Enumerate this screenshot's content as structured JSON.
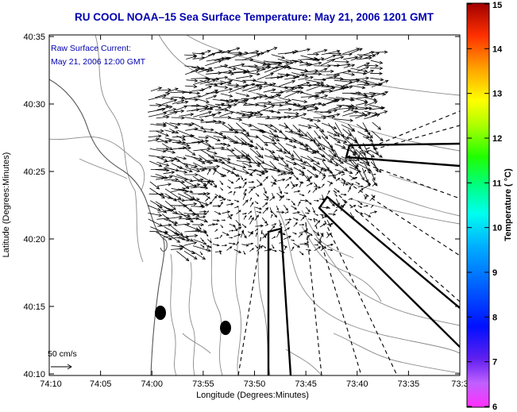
{
  "title": "RU COOL  NOAA–15  Sea Surface Temperature:  May 21, 2006 1201 GMT",
  "annotation": {
    "line1": "Raw Surface Current:",
    "line2": "May 21, 2006 12:00 GMT"
  },
  "axes": {
    "xlabel": "Longitude (Degrees:Minutes)",
    "ylabel": "Latitude (Degrees:Minutes)",
    "x_ticks": [
      "74:10",
      "74:05",
      "74:00",
      "73:55",
      "73:50",
      "73:45",
      "73:40",
      "73:35",
      "73:3"
    ],
    "y_ticks": [
      "40:35",
      "40:30",
      "40:25",
      "40:20",
      "40:15",
      "40:10"
    ]
  },
  "scale": {
    "label": "50 cm/s"
  },
  "colorbar": {
    "label": "Temperature ( °C)",
    "ticks": [
      "15",
      "14",
      "13",
      "12",
      "11",
      "10",
      "9",
      "8",
      "7",
      "6"
    ],
    "min": 6,
    "max": 15
  },
  "colors": {
    "title": "#0000b0",
    "annotation": "#0000b0",
    "arrow": "#000000",
    "contour": "#8a8a8a"
  }
}
